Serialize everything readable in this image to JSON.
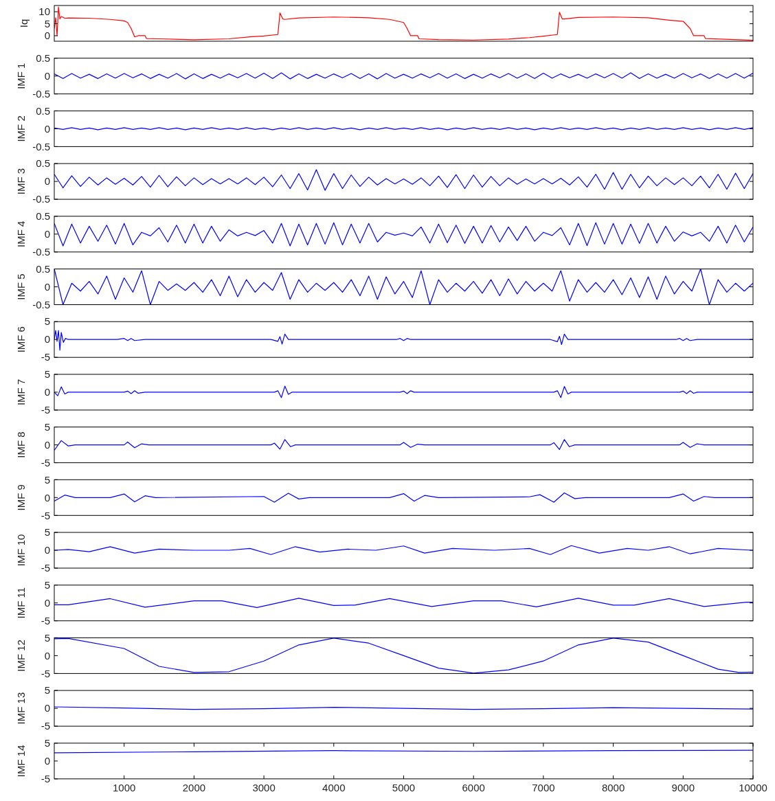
{
  "chart_data": [
    {
      "type": "line",
      "ylabel": "Iq",
      "xlim": [
        0,
        10000
      ],
      "ylim": [
        -2.3,
        12.6
      ],
      "yticks": [
        0,
        5,
        10
      ],
      "tick_labels": "y",
      "grid": false,
      "series": [
        {
          "color": "#ff0000",
          "x": [
            0,
            20,
            40,
            60,
            80,
            100,
            150,
            200,
            500,
            800,
            1000,
            1050,
            1100,
            1150,
            1200,
            1300,
            1320,
            1500,
            2000,
            2500,
            2800,
            3000,
            3200,
            3230,
            3270,
            3300,
            3500,
            4000,
            4500,
            4800,
            5000,
            5050,
            5100,
            5200,
            5220,
            5500,
            6000,
            6500,
            6800,
            7000,
            7200,
            7230,
            7270,
            7300,
            7500,
            8000,
            8500,
            8800,
            9000,
            9100,
            9150,
            9300,
            9320,
            9600,
            10000
          ],
          "values": [
            3,
            7.5,
            0,
            12,
            7,
            8,
            7.3,
            7.4,
            7.3,
            6.8,
            6.2,
            5.5,
            3,
            -0.5,
            0,
            0,
            -1.2,
            -1.3,
            -1.7,
            -1.3,
            -0.5,
            -0.1,
            0.5,
            9.5,
            7,
            6.8,
            7.4,
            7.8,
            7.5,
            6.8,
            5.5,
            3,
            0,
            0,
            -1.3,
            -1.6,
            -1.8,
            -1.4,
            -0.8,
            -0.2,
            0.5,
            9.8,
            7,
            7,
            7.6,
            7.8,
            7.5,
            6.5,
            6,
            3,
            0,
            0,
            -1.2,
            -1.5,
            -1.9
          ]
        }
      ]
    },
    {
      "type": "line",
      "ylabel": "IMF 1",
      "xlim": [
        0,
        10000
      ],
      "ylim": [
        -0.5,
        0.5
      ],
      "yticks": [
        -0.5,
        0,
        0.5
      ],
      "tick_labels": "y",
      "grid": false,
      "x": [
        0,
        125,
        250,
        375,
        500,
        625,
        750,
        875,
        1000,
        1125,
        1250,
        1375,
        1500,
        1625,
        1750,
        1875,
        2000,
        2125,
        2250,
        2375,
        2500,
        2625,
        2750,
        2875,
        3000,
        3125,
        3250,
        3375,
        3500,
        3625,
        3750,
        3875,
        4000,
        4125,
        4250,
        4375,
        4500,
        4625,
        4750,
        4875,
        5000,
        5125,
        5250,
        5375,
        5500,
        5625,
        5750,
        5875,
        6000,
        6125,
        6250,
        6375,
        6500,
        6625,
        6750,
        6875,
        7000,
        7125,
        7250,
        7375,
        7500,
        7625,
        7750,
        7875,
        8000,
        8125,
        8250,
        8375,
        8500,
        8625,
        8750,
        8875,
        9000,
        9125,
        9250,
        9375,
        9500,
        9625,
        9750,
        9875,
        10000
      ],
      "series": [
        {
          "color": "#0000ff",
          "values": [
            0.06,
            -0.07,
            0.07,
            -0.06,
            0.05,
            -0.07,
            0.06,
            -0.06,
            0.07,
            -0.05,
            0.06,
            -0.07,
            0.05,
            -0.06,
            0.07,
            -0.08,
            0.06,
            -0.07,
            0.05,
            -0.06,
            0.06,
            -0.05,
            0.07,
            -0.06,
            0.08,
            -0.07,
            0.09,
            -0.08,
            0.06,
            -0.07,
            0.05,
            -0.06,
            0.06,
            -0.05,
            0.07,
            -0.07,
            0.06,
            -0.08,
            0.07,
            -0.06,
            0.05,
            -0.06,
            0.06,
            -0.05,
            0.07,
            -0.06,
            0.06,
            -0.07,
            0.05,
            -0.06,
            0.06,
            -0.05,
            0.07,
            -0.06,
            0.06,
            -0.07,
            0.08,
            -0.06,
            0.06,
            -0.05,
            0.05,
            -0.06,
            0.06,
            -0.05,
            0.07,
            -0.06,
            0.09,
            -0.07,
            0.06,
            -0.06,
            0.05,
            -0.06,
            0.07,
            -0.05,
            0.06,
            -0.07,
            0.06,
            -0.06,
            0.07,
            -0.06,
            0.08
          ]
        }
      ]
    },
    {
      "type": "line",
      "ylabel": "IMF 2",
      "xlim": [
        0,
        10000
      ],
      "ylim": [
        -0.5,
        0.5
      ],
      "yticks": [
        -0.5,
        0,
        0.5
      ],
      "tick_labels": "y",
      "grid": false,
      "x": [
        0,
        125,
        250,
        375,
        500,
        625,
        750,
        875,
        1000,
        1125,
        1250,
        1375,
        1500,
        1625,
        1750,
        1875,
        2000,
        2125,
        2250,
        2375,
        2500,
        2625,
        2750,
        2875,
        3000,
        3125,
        3250,
        3375,
        3500,
        3625,
        3750,
        3875,
        4000,
        4125,
        4250,
        4375,
        4500,
        4625,
        4750,
        4875,
        5000,
        5125,
        5250,
        5375,
        5500,
        5625,
        5750,
        5875,
        6000,
        6125,
        6250,
        6375,
        6500,
        6625,
        6750,
        6875,
        7000,
        7125,
        7250,
        7375,
        7500,
        7625,
        7750,
        7875,
        8000,
        8125,
        8250,
        8375,
        8500,
        8625,
        8750,
        8875,
        9000,
        9125,
        9250,
        9375,
        9500,
        9625,
        9750,
        9875,
        10000
      ],
      "series": [
        {
          "color": "#0000ff",
          "values": [
            0.02,
            -0.02,
            0.03,
            -0.02,
            0.02,
            -0.03,
            0.02,
            -0.02,
            0.03,
            -0.02,
            0.02,
            -0.02,
            0.03,
            -0.02,
            0.02,
            -0.03,
            0.02,
            -0.02,
            0.03,
            -0.02,
            0.02,
            -0.02,
            0.03,
            -0.02,
            0.02,
            -0.03,
            0.02,
            -0.02,
            0.03,
            -0.02,
            0.02,
            -0.02,
            0.03,
            -0.02,
            0.02,
            -0.03,
            0.02,
            -0.02,
            0.03,
            -0.02,
            0.02,
            -0.02,
            0.03,
            -0.02,
            0.02,
            -0.03,
            0.02,
            -0.02,
            0.03,
            -0.02,
            0.02,
            -0.02,
            0.03,
            -0.02,
            0.02,
            -0.03,
            0.02,
            -0.02,
            0.03,
            -0.02,
            0.02,
            -0.02,
            0.03,
            -0.02,
            0.02,
            -0.03,
            0.02,
            -0.02,
            0.03,
            -0.02,
            0.02,
            -0.02,
            0.03,
            -0.02,
            0.02,
            -0.03,
            0.02,
            -0.02,
            0.03,
            -0.02,
            0.03
          ]
        }
      ]
    },
    {
      "type": "line",
      "ylabel": "IMF 3",
      "xlim": [
        0,
        10000
      ],
      "ylim": [
        -0.5,
        0.5
      ],
      "yticks": [
        -0.5,
        0,
        0.5
      ],
      "tick_labels": "y",
      "grid": false,
      "x": [
        0,
        125,
        250,
        375,
        500,
        625,
        750,
        875,
        1000,
        1125,
        1250,
        1375,
        1500,
        1625,
        1750,
        1875,
        2000,
        2125,
        2250,
        2375,
        2500,
        2625,
        2750,
        2875,
        3000,
        3125,
        3250,
        3375,
        3500,
        3625,
        3750,
        3875,
        4000,
        4125,
        4250,
        4375,
        4500,
        4625,
        4750,
        4875,
        5000,
        5125,
        5250,
        5375,
        5500,
        5625,
        5750,
        5875,
        6000,
        6125,
        6250,
        6375,
        6500,
        6625,
        6750,
        6875,
        7000,
        7125,
        7250,
        7375,
        7500,
        7625,
        7750,
        7875,
        8000,
        8125,
        8250,
        8375,
        8500,
        8625,
        8750,
        8875,
        9000,
        9125,
        9250,
        9375,
        9500,
        9625,
        9750,
        9875,
        10000
      ],
      "series": [
        {
          "color": "#0000ff",
          "values": [
            0.2,
            -0.18,
            0.16,
            -0.14,
            0.12,
            -0.1,
            0.1,
            -0.08,
            0.09,
            -0.1,
            0.14,
            -0.16,
            0.17,
            -0.15,
            0.13,
            -0.12,
            0.1,
            -0.09,
            0.08,
            -0.07,
            0.08,
            -0.07,
            0.1,
            -0.09,
            0.12,
            -0.15,
            0.18,
            -0.2,
            0.22,
            -0.24,
            0.33,
            -0.25,
            0.22,
            -0.2,
            0.18,
            -0.14,
            0.12,
            -0.1,
            0.08,
            -0.07,
            0.07,
            -0.08,
            0.1,
            -0.12,
            0.15,
            -0.17,
            0.19,
            -0.2,
            0.18,
            -0.16,
            0.14,
            -0.12,
            0.1,
            -0.08,
            0.07,
            -0.07,
            0.08,
            -0.07,
            0.09,
            -0.1,
            0.13,
            -0.16,
            0.2,
            -0.22,
            0.25,
            -0.22,
            0.2,
            -0.18,
            0.15,
            -0.12,
            0.1,
            -0.09,
            0.1,
            -0.12,
            0.15,
            -0.18,
            0.2,
            -0.22,
            0.23,
            -0.2,
            0.22
          ]
        }
      ]
    },
    {
      "type": "line",
      "ylabel": "IMF 4",
      "xlim": [
        0,
        10000
      ],
      "ylim": [
        -0.5,
        0.5
      ],
      "yticks": [
        -0.5,
        0,
        0.5
      ],
      "tick_labels": "y",
      "grid": false,
      "x": [
        0,
        125,
        250,
        375,
        500,
        625,
        750,
        875,
        1000,
        1125,
        1250,
        1375,
        1500,
        1625,
        1750,
        1875,
        2000,
        2125,
        2250,
        2375,
        2500,
        2625,
        2750,
        2875,
        3000,
        3125,
        3250,
        3375,
        3500,
        3625,
        3750,
        3875,
        4000,
        4125,
        4250,
        4375,
        4500,
        4625,
        4750,
        4875,
        5000,
        5125,
        5250,
        5375,
        5500,
        5625,
        5750,
        5875,
        6000,
        6125,
        6250,
        6375,
        6500,
        6625,
        6750,
        6875,
        7000,
        7125,
        7250,
        7375,
        7500,
        7625,
        7750,
        7875,
        8000,
        8125,
        8250,
        8375,
        8500,
        8625,
        8750,
        8875,
        9000,
        9125,
        9250,
        9375,
        9500,
        9625,
        9750,
        9875,
        10000
      ],
      "series": [
        {
          "color": "#0000ff",
          "values": [
            0.3,
            -0.33,
            0.28,
            -0.25,
            0.22,
            -0.2,
            0.25,
            -0.28,
            0.3,
            -0.3,
            0.05,
            -0.05,
            0.18,
            -0.22,
            0.25,
            -0.25,
            0.28,
            -0.25,
            0.22,
            -0.2,
            0.12,
            -0.05,
            0.05,
            -0.04,
            0.1,
            -0.25,
            0.3,
            -0.33,
            0.28,
            -0.3,
            0.3,
            -0.28,
            0.32,
            -0.3,
            0.28,
            -0.25,
            0.3,
            -0.22,
            0.05,
            -0.03,
            0.03,
            -0.05,
            0.2,
            -0.25,
            0.28,
            -0.24,
            0.25,
            -0.26,
            0.22,
            -0.25,
            0.24,
            -0.22,
            0.2,
            -0.18,
            0.22,
            -0.2,
            0.05,
            -0.04,
            0.18,
            -0.3,
            0.3,
            -0.32,
            0.32,
            -0.28,
            0.3,
            -0.28,
            0.28,
            -0.26,
            0.3,
            -0.25,
            0.22,
            -0.2,
            0.06,
            -0.05,
            0.05,
            -0.2,
            0.22,
            -0.25,
            0.25,
            -0.22,
            0.2
          ]
        }
      ]
    },
    {
      "type": "line",
      "ylabel": "IMF 5",
      "xlim": [
        0,
        10000
      ],
      "ylim": [
        -0.5,
        0.5
      ],
      "yticks": [
        -0.5,
        0,
        0.5
      ],
      "tick_labels": "y",
      "grid": false,
      "x": [
        0,
        125,
        250,
        375,
        500,
        625,
        750,
        875,
        1000,
        1125,
        1250,
        1375,
        1500,
        1625,
        1750,
        1875,
        2000,
        2125,
        2250,
        2375,
        2500,
        2625,
        2750,
        2875,
        3000,
        3125,
        3250,
        3375,
        3500,
        3625,
        3750,
        3875,
        4000,
        4125,
        4250,
        4375,
        4500,
        4625,
        4750,
        4875,
        5000,
        5125,
        5250,
        5375,
        5500,
        5625,
        5750,
        5875,
        6000,
        6125,
        6250,
        6375,
        6500,
        6625,
        6750,
        6875,
        7000,
        7125,
        7250,
        7375,
        7500,
        7625,
        7750,
        7875,
        8000,
        8125,
        8250,
        8375,
        8500,
        8625,
        8750,
        8875,
        9000,
        9125,
        9250,
        9375,
        9500,
        9625,
        9750,
        9875,
        10000
      ],
      "series": [
        {
          "color": "#0000ff",
          "values": [
            0.5,
            -0.5,
            0.1,
            -0.12,
            0.15,
            -0.2,
            0.3,
            -0.35,
            0.25,
            -0.15,
            0.45,
            -0.5,
            0.15,
            -0.1,
            0.08,
            -0.1,
            0.12,
            -0.15,
            0.2,
            -0.25,
            0.3,
            -0.28,
            0.2,
            -0.15,
            0.12,
            -0.1,
            0.4,
            -0.35,
            0.2,
            -0.15,
            0.1,
            -0.1,
            0.12,
            -0.15,
            0.2,
            -0.25,
            0.3,
            -0.35,
            0.28,
            -0.2,
            0.15,
            -0.3,
            0.45,
            -0.5,
            0.2,
            -0.15,
            0.1,
            -0.12,
            0.15,
            -0.18,
            0.2,
            -0.25,
            0.22,
            -0.2,
            0.15,
            -0.12,
            0.1,
            -0.12,
            0.45,
            -0.4,
            0.2,
            -0.15,
            0.12,
            -0.15,
            0.2,
            -0.22,
            0.25,
            -0.3,
            0.28,
            -0.35,
            0.3,
            -0.2,
            0.15,
            -0.12,
            0.5,
            -0.5,
            0.2,
            -0.15,
            0.1,
            -0.12,
            0.1
          ]
        }
      ]
    },
    {
      "type": "line",
      "ylabel": "IMF 6",
      "xlim": [
        0,
        10000
      ],
      "ylim": [
        -5,
        5
      ],
      "yticks": [
        -5,
        0,
        5
      ],
      "tick_labels": "y",
      "grid": false,
      "series": [
        {
          "color": "#0000ff",
          "x": [
            0,
            20,
            40,
            60,
            80,
            100,
            130,
            160,
            200,
            900,
            1000,
            1050,
            1100,
            1150,
            1300,
            3100,
            3200,
            3230,
            3260,
            3300,
            3350,
            4900,
            4950,
            5000,
            5050,
            5100,
            7100,
            7200,
            7230,
            7260,
            7300,
            7350,
            8900,
            8950,
            9000,
            9050,
            9100,
            9200,
            10000
          ],
          "values": [
            0,
            2.5,
            -0.5,
            2.5,
            -3,
            2,
            -0.8,
            0.3,
            0,
            0,
            0.3,
            -0.3,
            0.3,
            -0.3,
            0,
            0,
            -0.5,
            0.8,
            -1.3,
            1.5,
            0,
            0,
            0.3,
            -0.3,
            0.3,
            0,
            0,
            -0.6,
            0.9,
            -1.4,
            1.5,
            0,
            0,
            0.3,
            -0.3,
            0.3,
            -0.3,
            0,
            0
          ]
        }
      ]
    },
    {
      "type": "line",
      "ylabel": "IMF 7",
      "xlim": [
        0,
        10000
      ],
      "ylim": [
        -5,
        5
      ],
      "yticks": [
        -5,
        0,
        5
      ],
      "tick_labels": "y",
      "grid": false,
      "series": [
        {
          "color": "#0000ff",
          "x": [
            0,
            50,
            100,
            150,
            200,
            1000,
            1050,
            1100,
            1150,
            1200,
            1300,
            3150,
            3200,
            3250,
            3300,
            3350,
            3400,
            4950,
            5000,
            5050,
            5100,
            5150,
            7150,
            7200,
            7250,
            7300,
            7350,
            7400,
            8950,
            9000,
            9050,
            9100,
            9150,
            9200,
            10000
          ],
          "values": [
            0,
            -1,
            1.5,
            -0.5,
            0,
            0,
            0.3,
            -0.4,
            0.4,
            -0.3,
            0,
            0,
            0.4,
            -1.5,
            1.7,
            -0.6,
            0,
            0,
            0.3,
            -0.4,
            0.4,
            0,
            0,
            0.4,
            -1.5,
            1.6,
            -0.5,
            0,
            0,
            0.3,
            -0.4,
            0.4,
            -0.3,
            0,
            0
          ]
        }
      ]
    },
    {
      "type": "line",
      "ylabel": "IMF 8",
      "xlim": [
        0,
        10000
      ],
      "ylim": [
        -5,
        5
      ],
      "yticks": [
        -5,
        0,
        5
      ],
      "tick_labels": "y",
      "grid": false,
      "series": [
        {
          "color": "#0000ff",
          "x": [
            0,
            100,
            200,
            300,
            1000,
            1050,
            1150,
            1250,
            1350,
            3100,
            3150,
            3230,
            3300,
            3380,
            3450,
            4950,
            5000,
            5100,
            5200,
            5300,
            7100,
            7150,
            7230,
            7300,
            7370,
            7450,
            8950,
            9000,
            9100,
            9200,
            9300,
            10000
          ],
          "values": [
            -1.5,
            1.2,
            -0.3,
            0,
            0,
            0.8,
            -0.8,
            0.3,
            0,
            0,
            0.5,
            -1.2,
            1.5,
            -0.5,
            0,
            0,
            0.7,
            -0.7,
            0.2,
            0,
            0,
            0.6,
            -1.3,
            1.5,
            -0.5,
            0,
            0,
            0.7,
            -0.7,
            0.3,
            0,
            0
          ]
        }
      ]
    },
    {
      "type": "line",
      "ylabel": "IMF 9",
      "xlim": [
        0,
        10000
      ],
      "ylim": [
        -5,
        5
      ],
      "yticks": [
        -5,
        0,
        5
      ],
      "tick_labels": "y",
      "grid": false,
      "series": [
        {
          "color": "#0000ff",
          "x": [
            0,
            150,
            300,
            800,
            1000,
            1150,
            1300,
            1450,
            3000,
            3150,
            3350,
            3500,
            3650,
            4800,
            5000,
            5150,
            5300,
            5500,
            6800,
            6950,
            7150,
            7300,
            7450,
            7600,
            8800,
            9000,
            9150,
            9300,
            9450,
            10000
          ],
          "values": [
            -1,
            0.7,
            0,
            0,
            1,
            -1.2,
            0.5,
            0,
            0.3,
            -1.3,
            1.2,
            -0.4,
            0,
            0,
            1.1,
            -1,
            0.6,
            0,
            0.2,
            0.8,
            -1.3,
            1.3,
            -0.3,
            0,
            0,
            1,
            -1,
            0.3,
            0,
            0
          ]
        }
      ]
    },
    {
      "type": "line",
      "ylabel": "IMF 10",
      "xlim": [
        0,
        10000
      ],
      "ylim": [
        -5,
        5
      ],
      "yticks": [
        -5,
        0,
        5
      ],
      "tick_labels": "y",
      "grid": false,
      "series": [
        {
          "color": "#0000ff",
          "x": [
            0,
            200,
            500,
            800,
            1150,
            1500,
            2000,
            2500,
            2800,
            3100,
            3450,
            3800,
            4200,
            4600,
            5000,
            5300,
            5700,
            6300,
            6800,
            7100,
            7400,
            7800,
            8200,
            8500,
            8800,
            9100,
            9500,
            10000
          ],
          "values": [
            0,
            0.2,
            -0.4,
            1,
            -0.8,
            0.3,
            0,
            0,
            0.5,
            -1.2,
            1,
            -0.5,
            0.3,
            0,
            1.2,
            -0.8,
            0.5,
            0,
            0.5,
            -1.2,
            1.3,
            -0.8,
            0.5,
            0,
            1,
            -1,
            0.5,
            0
          ]
        }
      ]
    },
    {
      "type": "line",
      "ylabel": "IMF 11",
      "xlim": [
        0,
        10000
      ],
      "ylim": [
        -5,
        5
      ],
      "yticks": [
        -5,
        0,
        5
      ],
      "tick_labels": "y",
      "grid": false,
      "series": [
        {
          "color": "#0000ff",
          "x": [
            0,
            200,
            800,
            1300,
            2000,
            2400,
            2900,
            3500,
            4000,
            4300,
            4800,
            5400,
            6000,
            6400,
            6900,
            7500,
            8000,
            8300,
            8800,
            9300,
            9900,
            10000
          ],
          "values": [
            -0.5,
            -0.5,
            1.2,
            -1.2,
            0.6,
            0.6,
            -1.3,
            1.3,
            -0.7,
            -0.6,
            1.2,
            -1,
            0.6,
            0.6,
            -1.1,
            1.3,
            -0.6,
            -0.6,
            1.2,
            -1,
            0.2,
            0.2
          ]
        }
      ]
    },
    {
      "type": "line",
      "ylabel": "IMF 12",
      "xlim": [
        0,
        10000
      ],
      "ylim": [
        -5,
        5
      ],
      "yticks": [
        -5,
        0,
        5
      ],
      "tick_labels": "y",
      "grid": false,
      "series": [
        {
          "color": "#0000ff",
          "x": [
            0,
            200,
            1000,
            1500,
            2000,
            2500,
            3000,
            3500,
            4000,
            4500,
            5000,
            5500,
            6000,
            6500,
            7000,
            7500,
            8000,
            8500,
            9000,
            9500,
            9800,
            10000
          ],
          "values": [
            4.7,
            4.8,
            2,
            -3,
            -4.7,
            -4.5,
            -1.5,
            3,
            4.9,
            3.5,
            0,
            -3.5,
            -4.9,
            -4,
            -1.5,
            3,
            4.9,
            3.8,
            0,
            -3.8,
            -4.7,
            -4.6
          ]
        }
      ]
    },
    {
      "type": "line",
      "ylabel": "IMF 13",
      "xlim": [
        0,
        10000
      ],
      "ylim": [
        -5,
        5
      ],
      "yticks": [
        -5,
        0,
        5
      ],
      "tick_labels": "y",
      "grid": false,
      "series": [
        {
          "color": "#0000ff",
          "x": [
            0,
            1000,
            2000,
            3000,
            4000,
            5000,
            6000,
            7000,
            8000,
            9000,
            10000
          ],
          "values": [
            0.4,
            0.1,
            -0.3,
            -0.1,
            0.3,
            0,
            -0.3,
            -0.1,
            0.2,
            0,
            -0.2
          ]
        }
      ]
    },
    {
      "type": "line",
      "ylabel": "IMF 14",
      "xlim": [
        0,
        10000
      ],
      "ylim": [
        -5,
        5
      ],
      "yticks": [
        -5,
        0,
        5
      ],
      "xticks": [
        1000,
        2000,
        3000,
        4000,
        5000,
        6000,
        7000,
        8000,
        9000,
        10000
      ],
      "grid": false,
      "series": [
        {
          "color": "#0000ff",
          "x": [
            0,
            2000,
            4000,
            6000,
            8000,
            10000
          ],
          "values": [
            2.3,
            2.6,
            2.9,
            2.7,
            2.9,
            3
          ]
        }
      ]
    }
  ]
}
